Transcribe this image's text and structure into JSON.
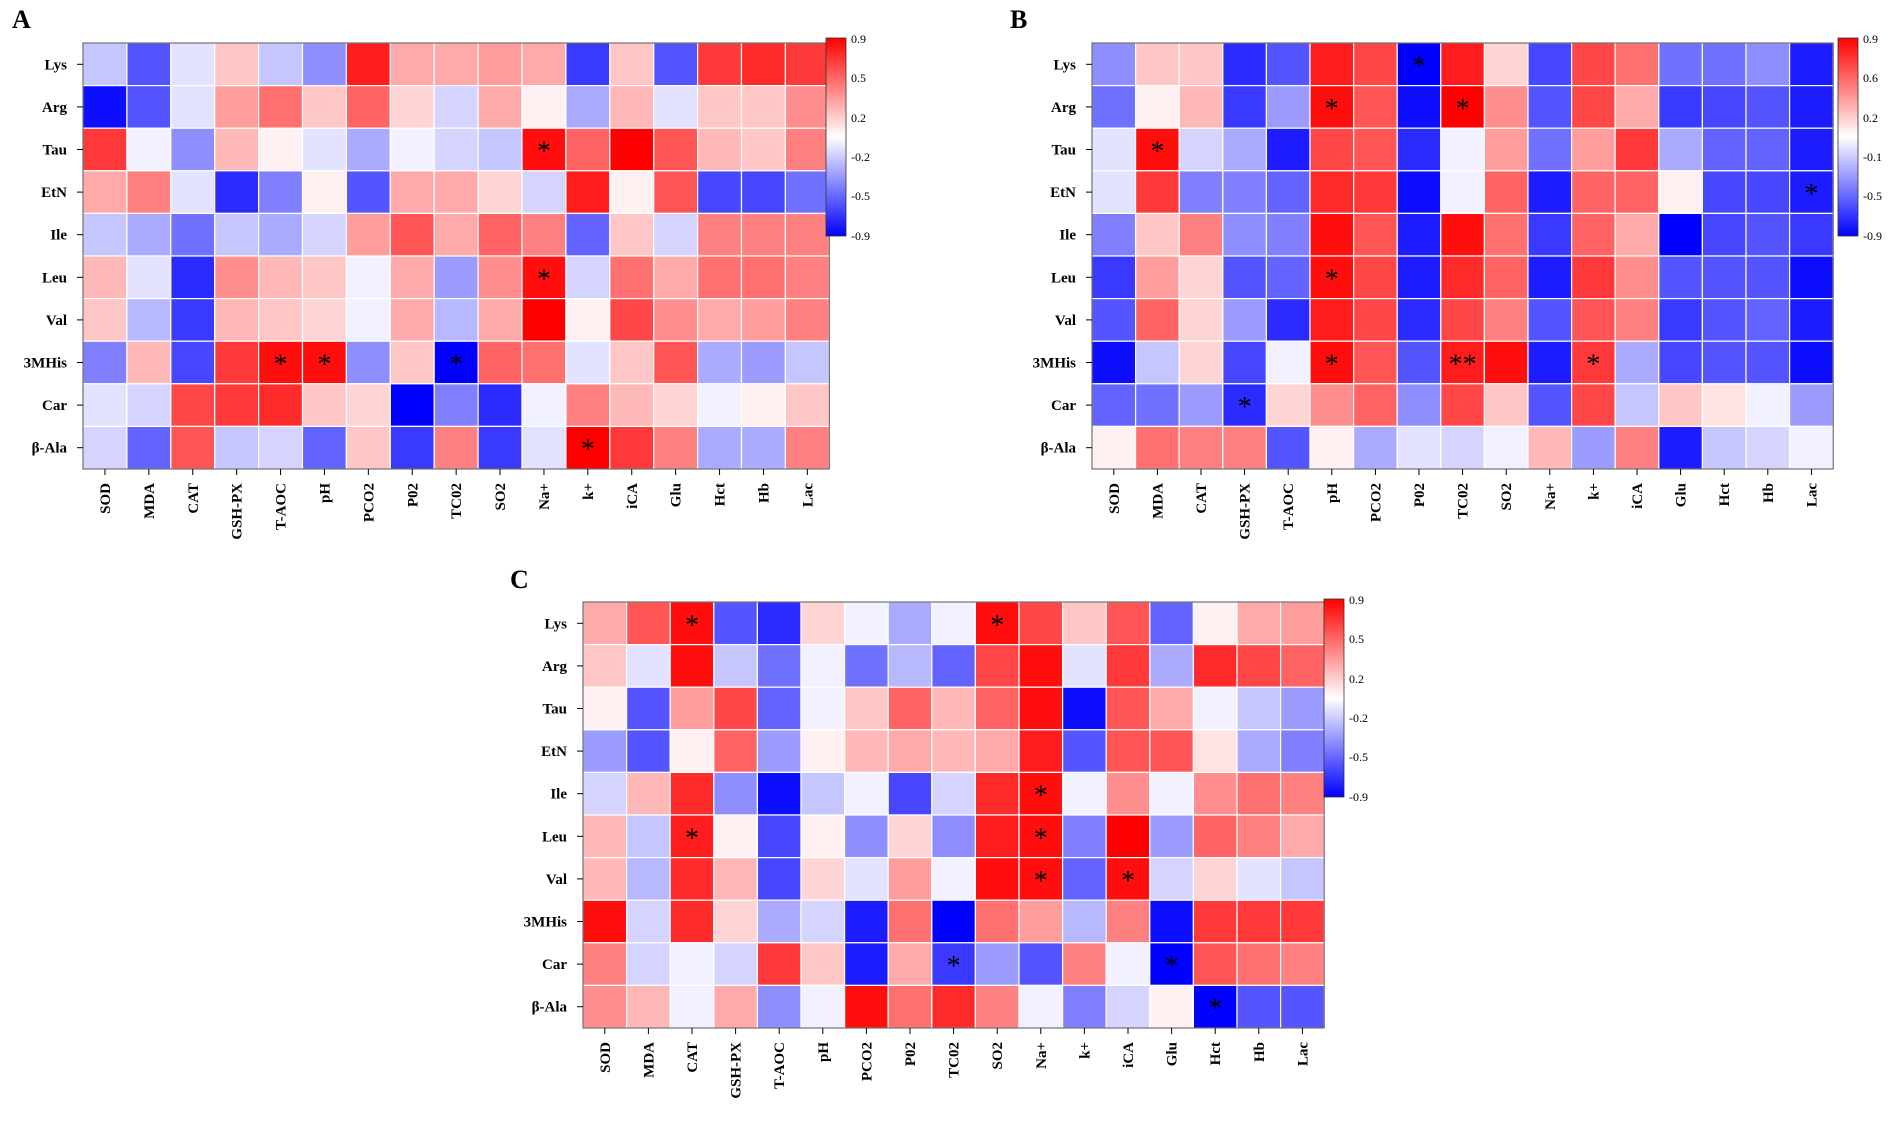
{
  "figure": {
    "panel_labels": [
      "A",
      "B",
      "C"
    ],
    "colorbar_ticks_A": [
      "0.9",
      "0.5",
      "0.2",
      "-0.2",
      "-0.5",
      "-0.9"
    ],
    "colorbar_ticks_B": [
      "0.9",
      "0.6",
      "0.2",
      "-0.1",
      "-0.5",
      "-0.9"
    ],
    "colorbar_ticks_C": [
      "0.9",
      "0.5",
      "0.2",
      "-0.2",
      "-0.5",
      "-0.9"
    ],
    "colors": {
      "negative": "#0000ff",
      "neutral": "#ffffff",
      "positive": "#ff0000",
      "grid": "#ffffff",
      "text": "#000000"
    }
  },
  "chart_data": [
    {
      "type": "heatmap",
      "title": "A",
      "rows": [
        "Lys",
        "Arg",
        "Tau",
        "EtN",
        "Ile",
        "Leu",
        "Val",
        "3MHis",
        "Car",
        "β-Ala"
      ],
      "cols": [
        "SOD",
        "MDA",
        "CAT",
        "GSH-PX",
        "T-AOC",
        "pH",
        "PCO2",
        "P02",
        "TC02",
        "SO2",
        "Na+",
        "k+",
        "iCA",
        "Glu",
        "Hct",
        "Hb",
        "Lac"
      ],
      "vmin": -0.9,
      "vmax": 0.9,
      "values": [
        [
          -0.2,
          -0.6,
          -0.1,
          0.2,
          -0.2,
          -0.4,
          0.8,
          0.3,
          0.3,
          0.35,
          0.3,
          -0.7,
          0.2,
          -0.6,
          0.7,
          0.75,
          0.7
        ],
        [
          -0.85,
          -0.6,
          -0.1,
          0.35,
          0.5,
          0.2,
          0.55,
          0.15,
          -0.15,
          0.3,
          0.05,
          -0.3,
          0.25,
          -0.1,
          0.2,
          0.2,
          0.4
        ],
        [
          0.7,
          -0.05,
          -0.4,
          0.25,
          0.05,
          -0.1,
          -0.3,
          -0.05,
          -0.15,
          -0.2,
          0.85,
          0.55,
          0.9,
          0.6,
          0.25,
          0.2,
          0.45
        ],
        [
          0.3,
          0.45,
          -0.1,
          -0.75,
          -0.45,
          0.05,
          -0.6,
          0.3,
          0.3,
          0.15,
          -0.15,
          0.8,
          0.05,
          0.6,
          -0.65,
          -0.65,
          -0.5
        ],
        [
          -0.2,
          -0.3,
          -0.5,
          -0.2,
          -0.3,
          -0.15,
          0.35,
          0.6,
          0.3,
          0.55,
          0.45,
          -0.55,
          0.2,
          -0.15,
          0.45,
          0.45,
          0.45
        ],
        [
          0.25,
          -0.1,
          -0.75,
          0.4,
          0.25,
          0.2,
          -0.05,
          0.3,
          -0.35,
          0.4,
          0.85,
          -0.15,
          0.5,
          0.3,
          0.5,
          0.5,
          0.45
        ],
        [
          0.2,
          -0.25,
          -0.7,
          0.25,
          0.2,
          0.15,
          -0.05,
          0.3,
          -0.25,
          0.3,
          0.9,
          0.05,
          0.65,
          0.4,
          0.3,
          0.35,
          0.45
        ],
        [
          -0.45,
          0.25,
          -0.65,
          0.7,
          0.85,
          0.85,
          -0.4,
          0.2,
          -0.9,
          0.55,
          0.5,
          -0.1,
          0.2,
          0.6,
          -0.3,
          -0.35,
          -0.2
        ],
        [
          -0.1,
          -0.15,
          0.65,
          0.7,
          0.75,
          0.2,
          0.15,
          -0.9,
          -0.45,
          -0.75,
          -0.05,
          0.45,
          0.25,
          0.15,
          -0.05,
          0.05,
          0.2
        ],
        [
          -0.15,
          -0.55,
          0.6,
          -0.2,
          -0.15,
          -0.55,
          0.2,
          -0.7,
          0.45,
          -0.7,
          -0.1,
          0.9,
          0.7,
          0.45,
          -0.3,
          -0.3,
          0.45
        ]
      ],
      "stars": [
        {
          "row": 2,
          "col": 10,
          "mark": "*"
        },
        {
          "row": 5,
          "col": 10,
          "mark": "*"
        },
        {
          "row": 7,
          "col": 4,
          "mark": "*"
        },
        {
          "row": 7,
          "col": 5,
          "mark": "*"
        },
        {
          "row": 7,
          "col": 8,
          "mark": "*"
        },
        {
          "row": 9,
          "col": 11,
          "mark": "*"
        }
      ]
    },
    {
      "type": "heatmap",
      "title": "B",
      "rows": [
        "Lys",
        "Arg",
        "Tau",
        "EtN",
        "Ile",
        "Leu",
        "Val",
        "3MHis",
        "Car",
        "β-Ala"
      ],
      "cols": [
        "SOD",
        "MDA",
        "CAT",
        "GSH-PX",
        "T-AOC",
        "pH",
        "PCO2",
        "P02",
        "TC02",
        "SO2",
        "Na+",
        "k+",
        "iCA",
        "Glu",
        "Hct",
        "Hb",
        "Lac"
      ],
      "vmin": -0.9,
      "vmax": 0.9,
      "values": [
        [
          -0.4,
          0.2,
          0.2,
          -0.75,
          -0.6,
          0.8,
          0.65,
          -0.9,
          0.8,
          0.15,
          -0.65,
          0.65,
          0.5,
          -0.5,
          -0.5,
          -0.4,
          -0.8
        ],
        [
          -0.5,
          0.05,
          0.25,
          -0.7,
          -0.35,
          0.85,
          0.6,
          -0.85,
          0.9,
          0.4,
          -0.6,
          0.65,
          0.3,
          -0.7,
          -0.65,
          -0.6,
          -0.8
        ],
        [
          -0.1,
          0.85,
          -0.15,
          -0.3,
          -0.8,
          0.65,
          0.6,
          -0.75,
          -0.05,
          0.35,
          -0.5,
          0.35,
          0.7,
          -0.3,
          -0.55,
          -0.55,
          -0.8
        ],
        [
          -0.1,
          0.7,
          -0.45,
          -0.45,
          -0.55,
          0.75,
          0.7,
          -0.85,
          -0.05,
          0.55,
          -0.8,
          0.55,
          0.55,
          0.05,
          -0.65,
          -0.65,
          -0.8
        ],
        [
          -0.45,
          0.2,
          0.45,
          -0.4,
          -0.45,
          0.85,
          0.6,
          -0.8,
          0.85,
          0.5,
          -0.7,
          0.55,
          0.3,
          -0.9,
          -0.65,
          -0.6,
          -0.7
        ],
        [
          -0.7,
          0.35,
          0.15,
          -0.6,
          -0.55,
          0.85,
          0.65,
          -0.8,
          0.75,
          0.55,
          -0.8,
          0.7,
          0.4,
          -0.6,
          -0.6,
          -0.6,
          -0.85
        ],
        [
          -0.6,
          0.55,
          0.15,
          -0.35,
          -0.75,
          0.8,
          0.65,
          -0.75,
          0.65,
          0.45,
          -0.6,
          0.6,
          0.45,
          -0.7,
          -0.6,
          -0.55,
          -0.8
        ],
        [
          -0.85,
          -0.2,
          0.15,
          -0.65,
          -0.05,
          0.85,
          0.6,
          -0.6,
          0.8,
          0.85,
          -0.8,
          0.7,
          -0.3,
          -0.65,
          -0.6,
          -0.6,
          -0.85
        ],
        [
          -0.55,
          -0.5,
          -0.35,
          -0.75,
          0.15,
          0.4,
          0.55,
          -0.4,
          0.65,
          0.2,
          -0.6,
          0.65,
          -0.2,
          0.2,
          0.1,
          -0.05,
          -0.35
        ],
        [
          0.05,
          0.5,
          0.45,
          0.45,
          -0.6,
          0.05,
          -0.3,
          -0.1,
          -0.15,
          -0.05,
          0.25,
          -0.35,
          0.45,
          -0.8,
          -0.2,
          -0.15,
          -0.05
        ]
      ],
      "stars": [
        {
          "row": 0,
          "col": 7,
          "mark": "*"
        },
        {
          "row": 1,
          "col": 5,
          "mark": "*"
        },
        {
          "row": 1,
          "col": 8,
          "mark": "*"
        },
        {
          "row": 2,
          "col": 1,
          "mark": "*"
        },
        {
          "row": 3,
          "col": 16,
          "mark": "*"
        },
        {
          "row": 5,
          "col": 5,
          "mark": "*"
        },
        {
          "row": 7,
          "col": 5,
          "mark": "*"
        },
        {
          "row": 7,
          "col": 8,
          "mark": "**"
        },
        {
          "row": 7,
          "col": 11,
          "mark": "*"
        },
        {
          "row": 8,
          "col": 3,
          "mark": "*"
        }
      ]
    },
    {
      "type": "heatmap",
      "title": "C",
      "rows": [
        "Lys",
        "Arg",
        "Tau",
        "EtN",
        "Ile",
        "Leu",
        "Val",
        "3MHis",
        "Car",
        "β-Ala"
      ],
      "cols": [
        "SOD",
        "MDA",
        "CAT",
        "GSH-PX",
        "T-AOC",
        "pH",
        "PCO2",
        "P02",
        "TC02",
        "SO2",
        "Na+",
        "k+",
        "iCA",
        "Glu",
        "Hct",
        "Hb",
        "Lac"
      ],
      "vmin": -0.9,
      "vmax": 0.9,
      "values": [
        [
          0.3,
          0.6,
          0.85,
          -0.6,
          -0.75,
          0.15,
          -0.05,
          -0.3,
          -0.05,
          0.85,
          0.65,
          0.2,
          0.6,
          -0.55,
          0.05,
          0.3,
          0.35
        ],
        [
          0.2,
          -0.1,
          0.85,
          -0.2,
          -0.5,
          -0.05,
          -0.5,
          -0.25,
          -0.55,
          0.65,
          0.85,
          -0.1,
          0.7,
          -0.3,
          0.75,
          0.65,
          0.55
        ],
        [
          0.05,
          -0.6,
          0.35,
          0.65,
          -0.55,
          -0.05,
          0.2,
          0.55,
          0.25,
          0.55,
          0.85,
          -0.85,
          0.6,
          0.3,
          -0.05,
          -0.2,
          -0.35
        ],
        [
          -0.35,
          -0.6,
          0.05,
          0.55,
          -0.35,
          0.05,
          0.25,
          0.3,
          0.25,
          0.3,
          0.8,
          -0.6,
          0.6,
          0.6,
          0.1,
          -0.3,
          -0.45
        ],
        [
          -0.15,
          0.25,
          0.75,
          -0.4,
          -0.85,
          -0.2,
          -0.05,
          -0.65,
          -0.15,
          0.75,
          0.85,
          -0.05,
          0.4,
          -0.05,
          0.4,
          0.5,
          0.45
        ],
        [
          0.25,
          -0.2,
          0.8,
          0.05,
          -0.65,
          0.05,
          -0.4,
          0.15,
          -0.4,
          0.8,
          0.85,
          -0.45,
          0.9,
          -0.35,
          0.55,
          0.45,
          0.3
        ],
        [
          0.25,
          -0.25,
          0.75,
          0.25,
          -0.65,
          0.15,
          -0.1,
          0.35,
          -0.05,
          0.85,
          0.85,
          -0.55,
          0.85,
          -0.15,
          0.15,
          -0.1,
          -0.2
        ],
        [
          0.85,
          -0.15,
          0.75,
          0.15,
          -0.3,
          -0.15,
          -0.8,
          0.5,
          -0.9,
          0.5,
          0.35,
          -0.25,
          0.45,
          -0.85,
          0.7,
          0.7,
          0.7
        ],
        [
          0.45,
          -0.15,
          -0.05,
          -0.15,
          0.7,
          0.2,
          -0.8,
          0.3,
          -0.7,
          -0.35,
          -0.6,
          0.45,
          -0.05,
          -0.9,
          0.6,
          0.5,
          0.45
        ],
        [
          0.4,
          0.25,
          -0.05,
          0.3,
          -0.4,
          -0.05,
          0.85,
          0.5,
          0.75,
          0.45,
          -0.05,
          -0.45,
          -0.15,
          0.05,
          -0.9,
          -0.6,
          -0.6
        ]
      ],
      "stars": [
        {
          "row": 0,
          "col": 2,
          "mark": "*"
        },
        {
          "row": 0,
          "col": 9,
          "mark": "*"
        },
        {
          "row": 4,
          "col": 10,
          "mark": "*"
        },
        {
          "row": 5,
          "col": 2,
          "mark": "*"
        },
        {
          "row": 5,
          "col": 10,
          "mark": "*"
        },
        {
          "row": 6,
          "col": 10,
          "mark": "*"
        },
        {
          "row": 6,
          "col": 12,
          "mark": "*"
        },
        {
          "row": 8,
          "col": 8,
          "mark": "*"
        },
        {
          "row": 8,
          "col": 13,
          "mark": "*"
        },
        {
          "row": 9,
          "col": 14,
          "mark": "*"
        }
      ]
    }
  ]
}
